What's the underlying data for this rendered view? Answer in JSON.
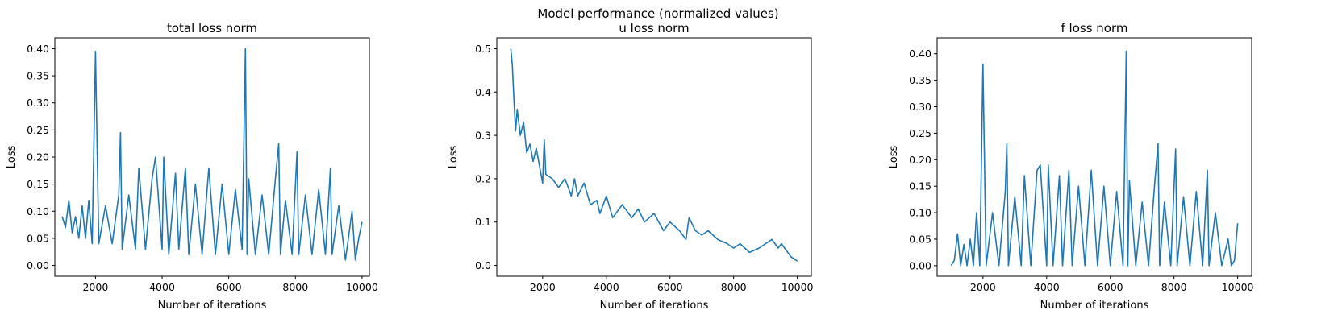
{
  "figure": {
    "suptitle": "Model performance (normalized values)",
    "series_color": "#1f77b4"
  },
  "chart_data": [
    {
      "type": "line",
      "title": "total loss norm",
      "xlabel": "Number of iterations",
      "ylabel": "Loss",
      "xlim": [
        780,
        10220
      ],
      "ylim": [
        -0.02,
        0.42
      ],
      "xticks": [
        2000,
        4000,
        6000,
        8000,
        10000
      ],
      "yticks": [
        0.0,
        0.05,
        0.1,
        0.15,
        0.2,
        0.25,
        0.3,
        0.35,
        0.4
      ],
      "ytick_labels": [
        "0.00",
        "0.05",
        "0.10",
        "0.15",
        "0.20",
        "0.25",
        "0.30",
        "0.35",
        "0.40"
      ],
      "grid": false,
      "series": [
        {
          "x": [
            1000,
            1100,
            1200,
            1300,
            1400,
            1500,
            1600,
            1700,
            1800,
            1900,
            2000,
            2100,
            2300,
            2500,
            2700,
            2750,
            2800,
            3000,
            3200,
            3300,
            3500,
            3700,
            3800,
            4000,
            4050,
            4200,
            4400,
            4500,
            4700,
            4800,
            5000,
            5200,
            5400,
            5600,
            5800,
            6000,
            6200,
            6400,
            6500,
            6550,
            6600,
            6800,
            7000,
            7200,
            7400,
            7500,
            7550,
            7700,
            7900,
            8050,
            8100,
            8300,
            8500,
            8700,
            8900,
            9050,
            9100,
            9300,
            9500,
            9700,
            9800,
            9900,
            10000
          ],
          "y": [
            0.09,
            0.07,
            0.12,
            0.06,
            0.09,
            0.05,
            0.11,
            0.05,
            0.12,
            0.04,
            0.395,
            0.04,
            0.11,
            0.04,
            0.13,
            0.245,
            0.03,
            0.13,
            0.03,
            0.18,
            0.03,
            0.16,
            0.2,
            0.03,
            0.2,
            0.02,
            0.17,
            0.03,
            0.18,
            0.02,
            0.15,
            0.02,
            0.18,
            0.02,
            0.15,
            0.02,
            0.14,
            0.03,
            0.4,
            0.02,
            0.16,
            0.02,
            0.13,
            0.02,
            0.16,
            0.225,
            0.02,
            0.12,
            0.02,
            0.21,
            0.02,
            0.13,
            0.02,
            0.14,
            0.02,
            0.18,
            0.02,
            0.11,
            0.01,
            0.1,
            0.01,
            0.05,
            0.08
          ]
        }
      ]
    },
    {
      "type": "line",
      "title": "u loss norm",
      "xlabel": "Number of iterations",
      "ylabel": "Loss",
      "xlim": [
        560,
        10440
      ],
      "ylim": [
        -0.025,
        0.525
      ],
      "xticks": [
        2000,
        4000,
        6000,
        8000,
        10000
      ],
      "yticks": [
        0.0,
        0.1,
        0.2,
        0.3,
        0.4,
        0.5
      ],
      "ytick_labels": [
        "0.0",
        "0.1",
        "0.2",
        "0.3",
        "0.4",
        "0.5"
      ],
      "grid": false,
      "series": [
        {
          "x": [
            1000,
            1050,
            1100,
            1150,
            1200,
            1300,
            1400,
            1500,
            1600,
            1700,
            1800,
            2000,
            2050,
            2100,
            2300,
            2500,
            2700,
            2900,
            3000,
            3100,
            3300,
            3500,
            3700,
            3800,
            4000,
            4200,
            4500,
            4800,
            5000,
            5200,
            5500,
            5800,
            6000,
            6300,
            6500,
            6600,
            6800,
            7000,
            7200,
            7500,
            7800,
            8000,
            8200,
            8500,
            8800,
            9000,
            9200,
            9400,
            9500,
            9700,
            9800,
            10000
          ],
          "y": [
            0.5,
            0.46,
            0.38,
            0.31,
            0.36,
            0.3,
            0.33,
            0.26,
            0.28,
            0.24,
            0.27,
            0.19,
            0.29,
            0.21,
            0.2,
            0.18,
            0.2,
            0.16,
            0.2,
            0.16,
            0.19,
            0.14,
            0.15,
            0.12,
            0.16,
            0.11,
            0.14,
            0.11,
            0.13,
            0.1,
            0.12,
            0.08,
            0.1,
            0.08,
            0.06,
            0.11,
            0.08,
            0.07,
            0.08,
            0.06,
            0.05,
            0.04,
            0.05,
            0.03,
            0.04,
            0.05,
            0.06,
            0.04,
            0.05,
            0.03,
            0.02,
            0.01
          ]
        }
      ]
    },
    {
      "type": "line",
      "title": "f loss norm",
      "xlabel": "Number of iterations",
      "ylabel": "Loss",
      "xlim": [
        560,
        10440
      ],
      "ylim": [
        -0.02,
        0.43
      ],
      "xticks": [
        2000,
        4000,
        6000,
        8000,
        10000
      ],
      "yticks": [
        0.0,
        0.05,
        0.1,
        0.15,
        0.2,
        0.25,
        0.3,
        0.35,
        0.4
      ],
      "ytick_labels": [
        "0.00",
        "0.05",
        "0.10",
        "0.15",
        "0.20",
        "0.25",
        "0.30",
        "0.35",
        "0.40"
      ],
      "grid": false,
      "series": [
        {
          "x": [
            1000,
            1100,
            1200,
            1300,
            1400,
            1500,
            1600,
            1700,
            1800,
            1900,
            2000,
            2100,
            2300,
            2500,
            2700,
            2750,
            2800,
            3000,
            3200,
            3300,
            3500,
            3700,
            3800,
            4000,
            4050,
            4200,
            4400,
            4500,
            4700,
            4800,
            5000,
            5200,
            5400,
            5600,
            5800,
            6000,
            6200,
            6400,
            6500,
            6550,
            6600,
            6800,
            7000,
            7200,
            7400,
            7500,
            7550,
            7700,
            7900,
            8050,
            8100,
            8300,
            8500,
            8700,
            8900,
            9050,
            9100,
            9300,
            9500,
            9700,
            9800,
            9900,
            10000
          ],
          "y": [
            0.0,
            0.01,
            0.06,
            0.0,
            0.04,
            0.0,
            0.05,
            0.0,
            0.1,
            0.0,
            0.38,
            0.0,
            0.1,
            0.0,
            0.14,
            0.23,
            0.0,
            0.13,
            0.0,
            0.17,
            0.0,
            0.18,
            0.19,
            0.0,
            0.19,
            0.0,
            0.17,
            0.0,
            0.18,
            0.0,
            0.15,
            0.0,
            0.18,
            0.0,
            0.15,
            0.0,
            0.14,
            0.0,
            0.405,
            0.0,
            0.16,
            0.0,
            0.12,
            0.0,
            0.16,
            0.23,
            0.0,
            0.12,
            0.0,
            0.22,
            0.0,
            0.13,
            0.0,
            0.14,
            0.0,
            0.18,
            0.0,
            0.1,
            0.0,
            0.05,
            0.0,
            0.01,
            0.08
          ]
        }
      ]
    }
  ]
}
